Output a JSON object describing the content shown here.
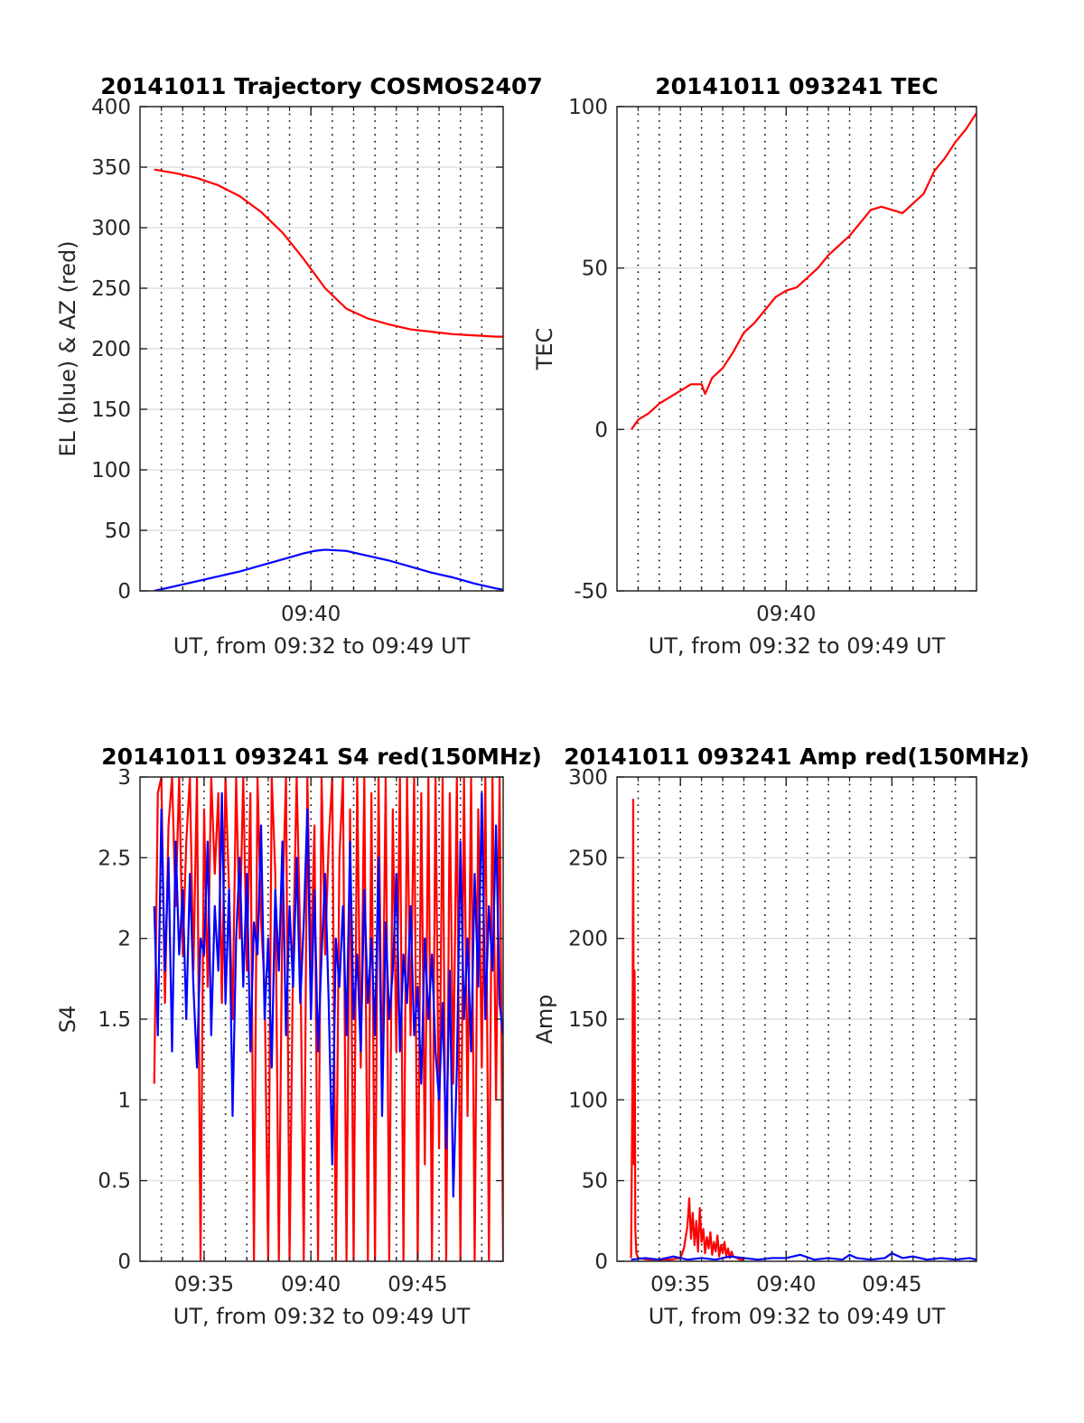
{
  "colors": {
    "red": "#ff0000",
    "blue": "#0000ff",
    "axis": "#262626",
    "grid": "#d9d9d9"
  },
  "chart_data": [
    {
      "id": "traj",
      "type": "line",
      "title": "20141011 Trajectory COSMOS2407",
      "xlabel": "UT, from 09:32 to 09:49 UT",
      "ylabel": "EL (blue) & AZ (red)",
      "xlim": [
        "09:32",
        "09:49"
      ],
      "ylim": [
        0,
        400
      ],
      "yticks": [
        0,
        50,
        100,
        150,
        200,
        250,
        300,
        350,
        400
      ],
      "xticks": [
        {
          "x": "09:40",
          "label": "09:40"
        }
      ],
      "grid": true,
      "series": [
        {
          "color": "#ff0000",
          "x": [
            "09:32:40",
            "09:33:40",
            "09:34:40",
            "09:35:40",
            "09:36:40",
            "09:37:40",
            "09:38:40",
            "09:39:40",
            "09:40:40",
            "09:41:40",
            "09:42:40",
            "09:43:40",
            "09:44:40",
            "09:45:40",
            "09:46:40",
            "09:47:40",
            "09:48:40",
            "09:49:00"
          ],
          "y": [
            348,
            345,
            341,
            335,
            326,
            313,
            296,
            274,
            250,
            233,
            225,
            220,
            216,
            214,
            212,
            211,
            210,
            210
          ]
        },
        {
          "color": "#0000ff",
          "x": [
            "09:32:40",
            "09:33:40",
            "09:34:40",
            "09:35:40",
            "09:36:40",
            "09:37:40",
            "09:38:40",
            "09:39:40",
            "09:40:10",
            "09:40:40",
            "09:41:40",
            "09:42:40",
            "09:43:40",
            "09:44:40",
            "09:45:40",
            "09:46:40",
            "09:47:40",
            "09:48:40",
            "09:49:00"
          ],
          "y": [
            0,
            4,
            8,
            12,
            16,
            21,
            26,
            31,
            33,
            34,
            33,
            29,
            25,
            20,
            15,
            11,
            6,
            2,
            1
          ]
        }
      ]
    },
    {
      "id": "tec",
      "type": "line",
      "title": "20141011 093241 TEC",
      "xlabel": "UT, from 09:32 to 09:49 UT",
      "ylabel": "TEC",
      "xlim": [
        "09:32",
        "09:49"
      ],
      "ylim": [
        -50,
        100
      ],
      "yticks": [
        -50,
        0,
        50,
        100
      ],
      "xticks": [
        {
          "x": "09:40",
          "label": "09:40"
        }
      ],
      "grid": true,
      "series": [
        {
          "color": "#ff0000",
          "x": [
            "09:32:41",
            "09:33:00",
            "09:33:30",
            "09:34:00",
            "09:34:30",
            "09:35:00",
            "09:35:30",
            "09:36:00",
            "09:36:10",
            "09:36:30",
            "09:37:00",
            "09:37:30",
            "09:38:00",
            "09:38:30",
            "09:39:00",
            "09:39:30",
            "09:40:00",
            "09:40:30",
            "09:41:00",
            "09:41:30",
            "09:42:00",
            "09:42:30",
            "09:43:00",
            "09:43:30",
            "09:44:00",
            "09:44:30",
            "09:45:00",
            "09:45:30",
            "09:46:00",
            "09:46:30",
            "09:47:00",
            "09:47:30",
            "09:48:00",
            "09:48:30",
            "09:49:00"
          ],
          "y": [
            0,
            3,
            5,
            8,
            10,
            12,
            14,
            14,
            11,
            16,
            19,
            24,
            30,
            33,
            37,
            41,
            43,
            44,
            47,
            50,
            54,
            57,
            60,
            64,
            68,
            69,
            68,
            67,
            70,
            73,
            80,
            84,
            89,
            93,
            98
          ]
        }
      ]
    },
    {
      "id": "s4",
      "type": "line",
      "title": "20141011 093241 S4 red(150MHz)",
      "xlabel": "UT, from 09:32 to 09:49 UT",
      "ylabel": "S4",
      "xlim": [
        "09:32",
        "09:49"
      ],
      "ylim": [
        0,
        3
      ],
      "yticks": [
        0,
        0.5,
        1,
        1.5,
        2,
        2.5,
        3
      ],
      "xticks": [
        {
          "x": "09:35",
          "label": "09:35"
        },
        {
          "x": "09:40",
          "label": "09:40"
        },
        {
          "x": "09:45",
          "label": "09:45"
        }
      ],
      "grid": true,
      "series": [
        {
          "color": "#ff0000",
          "x": [
            "09:32:40",
            "09:32:50",
            "09:33:00",
            "09:33:10",
            "09:33:20",
            "09:33:30",
            "09:33:40",
            "09:33:50",
            "09:34:00",
            "09:34:10",
            "09:34:20",
            "09:34:30",
            "09:34:40",
            "09:34:50",
            "09:35:00",
            "09:35:10",
            "09:35:20",
            "09:35:30",
            "09:35:40",
            "09:35:50",
            "09:36:00",
            "09:36:10",
            "09:36:20",
            "09:36:30",
            "09:36:40",
            "09:36:50",
            "09:37:00",
            "09:37:10",
            "09:37:20",
            "09:37:30",
            "09:37:40",
            "09:37:50",
            "09:38:00",
            "09:38:10",
            "09:38:20",
            "09:38:30",
            "09:38:40",
            "09:38:50",
            "09:39:00",
            "09:39:10",
            "09:39:20",
            "09:39:30",
            "09:39:40",
            "09:39:50",
            "09:40:00",
            "09:40:10",
            "09:40:20",
            "09:40:30",
            "09:40:40",
            "09:40:50",
            "09:41:00",
            "09:41:10",
            "09:41:20",
            "09:41:30",
            "09:41:40",
            "09:41:50",
            "09:42:00",
            "09:42:10",
            "09:42:20",
            "09:42:30",
            "09:42:40",
            "09:42:50",
            "09:43:00",
            "09:43:10",
            "09:43:20",
            "09:43:30",
            "09:43:40",
            "09:43:50",
            "09:44:00",
            "09:44:10",
            "09:44:20",
            "09:44:30",
            "09:44:40",
            "09:44:50",
            "09:45:00",
            "09:45:10",
            "09:45:20",
            "09:45:30",
            "09:45:40",
            "09:45:50",
            "09:46:00",
            "09:46:10",
            "09:46:20",
            "09:46:30",
            "09:46:40",
            "09:46:50",
            "09:47:00",
            "09:47:10",
            "09:47:20",
            "09:47:30",
            "09:47:40",
            "09:47:50",
            "09:48:00",
            "09:48:10",
            "09:48:20",
            "09:48:30",
            "09:48:40",
            "09:48:50",
            "09:49:00"
          ],
          "y": [
            1.1,
            2.9,
            3.0,
            1.6,
            2.7,
            3.0,
            2.2,
            3.0,
            1.9,
            2.6,
            3.0,
            1.8,
            3.0,
            0.0,
            2.8,
            1.7,
            3.0,
            2.4,
            2.9,
            1.6,
            3.0,
            2.3,
            1.5,
            3.0,
            2.0,
            3.0,
            1.8,
            2.9,
            0.0,
            3.0,
            2.1,
            1.7,
            0.0,
            3.0,
            2.4,
            0.0,
            2.2,
            3.0,
            0.0,
            1.9,
            3.0,
            2.0,
            0.0,
            3.0,
            1.8,
            2.7,
            0.0,
            3.0,
            1.9,
            2.6,
            3.0,
            0.0,
            2.5,
            3.0,
            0.0,
            2.8,
            0.0,
            3.0,
            1.2,
            3.0,
            0.0,
            2.9,
            0.0,
            3.0,
            1.0,
            3.0,
            0.0,
            2.8,
            1.3,
            3.0,
            0.0,
            3.0,
            1.4,
            3.0,
            0.0,
            2.9,
            0.6,
            3.0,
            0.0,
            3.0,
            0.7,
            3.0,
            0.0,
            2.9,
            1.1,
            3.0,
            0.0,
            3.0,
            0.9,
            3.0,
            0.0,
            2.8,
            1.2,
            3.0,
            0.0,
            3.0,
            1.0,
            3.0,
            0.0
          ]
        },
        {
          "color": "#0000ff",
          "x": [
            "09:32:40",
            "09:32:50",
            "09:33:00",
            "09:33:10",
            "09:33:20",
            "09:33:30",
            "09:33:40",
            "09:33:50",
            "09:34:00",
            "09:34:10",
            "09:34:20",
            "09:34:30",
            "09:34:40",
            "09:34:50",
            "09:35:00",
            "09:35:10",
            "09:35:20",
            "09:35:30",
            "09:35:40",
            "09:35:50",
            "09:36:00",
            "09:36:10",
            "09:36:20",
            "09:36:30",
            "09:36:40",
            "09:36:50",
            "09:37:00",
            "09:37:10",
            "09:37:20",
            "09:37:30",
            "09:37:40",
            "09:37:50",
            "09:38:00",
            "09:38:10",
            "09:38:20",
            "09:38:30",
            "09:38:40",
            "09:38:50",
            "09:39:00",
            "09:39:10",
            "09:39:20",
            "09:39:30",
            "09:39:40",
            "09:39:50",
            "09:40:00",
            "09:40:10",
            "09:40:20",
            "09:40:30",
            "09:40:40",
            "09:40:50",
            "09:41:00",
            "09:41:10",
            "09:41:20",
            "09:41:30",
            "09:41:40",
            "09:41:50",
            "09:42:00",
            "09:42:10",
            "09:42:20",
            "09:42:30",
            "09:42:40",
            "09:42:50",
            "09:43:00",
            "09:43:10",
            "09:43:20",
            "09:43:30",
            "09:43:40",
            "09:43:50",
            "09:44:00",
            "09:44:10",
            "09:44:20",
            "09:44:30",
            "09:44:40",
            "09:44:50",
            "09:45:00",
            "09:45:10",
            "09:45:20",
            "09:45:30",
            "09:45:40",
            "09:45:50",
            "09:46:00",
            "09:46:10",
            "09:46:20",
            "09:46:30",
            "09:46:40",
            "09:46:50",
            "09:47:00",
            "09:47:10",
            "09:47:20",
            "09:47:30",
            "09:47:40",
            "09:47:50",
            "09:48:00",
            "09:48:10",
            "09:48:20",
            "09:48:30",
            "09:48:40",
            "09:48:50",
            "09:49:00"
          ],
          "y": [
            2.2,
            1.4,
            2.8,
            1.8,
            2.5,
            1.3,
            2.6,
            1.9,
            2.3,
            1.5,
            2.4,
            1.7,
            1.2,
            2.0,
            1.9,
            2.6,
            1.4,
            2.2,
            1.8,
            2.9,
            1.6,
            2.3,
            0.9,
            2.0,
            2.5,
            1.7,
            2.4,
            1.3,
            2.1,
            1.9,
            2.7,
            1.5,
            2.0,
            1.2,
            2.3,
            1.8,
            2.6,
            1.4,
            2.2,
            1.7,
            2.5,
            1.6,
            2.1,
            2.8,
            1.5,
            2.3,
            1.3,
            1.9,
            2.4,
            1.6,
            0.6,
            2.0,
            1.7,
            2.2,
            1.4,
            2.6,
            1.5,
            1.9,
            1.3,
            2.3,
            1.6,
            2.0,
            1.4,
            2.5,
            0.9,
            2.1,
            1.5,
            1.8,
            2.4,
            1.3,
            1.9,
            1.6,
            2.2,
            1.4,
            1.7,
            1.1,
            2.0,
            1.5,
            1.9,
            1.3,
            1.0,
            1.6,
            0.7,
            1.8,
            0.4,
            1.2,
            2.6,
            1.5,
            2.0,
            1.3,
            2.4,
            1.7,
            2.9,
            1.5,
            2.2,
            1.8,
            2.7,
            1.6,
            1.4
          ]
        }
      ]
    },
    {
      "id": "amp",
      "type": "line",
      "title": "20141011 093241 Amp red(150MHz)",
      "xlabel": "UT, from 09:32 to 09:49 UT",
      "ylabel": "Amp",
      "xlim": [
        "09:32",
        "09:49"
      ],
      "ylim": [
        0,
        300
      ],
      "yticks": [
        0,
        50,
        100,
        150,
        200,
        250,
        300
      ],
      "xticks": [
        {
          "x": "09:35",
          "label": "09:35"
        },
        {
          "x": "09:40",
          "label": "09:40"
        },
        {
          "x": "09:45",
          "label": "09:45"
        }
      ],
      "grid": true,
      "series": [
        {
          "color": "#ff0000",
          "x": [
            "09:32:40",
            "09:32:44",
            "09:32:46",
            "09:32:48",
            "09:32:50",
            "09:32:52",
            "09:32:55",
            "09:33:00",
            "09:33:30",
            "09:34:00",
            "09:34:30",
            "09:35:00",
            "09:35:10",
            "09:35:20",
            "09:35:25",
            "09:35:30",
            "09:35:35",
            "09:35:40",
            "09:35:45",
            "09:35:50",
            "09:35:55",
            "09:36:00",
            "09:36:05",
            "09:36:10",
            "09:36:15",
            "09:36:20",
            "09:36:25",
            "09:36:30",
            "09:36:35",
            "09:36:40",
            "09:36:45",
            "09:36:50",
            "09:36:55",
            "09:37:00",
            "09:37:05",
            "09:37:10",
            "09:37:15",
            "09:37:20",
            "09:37:25",
            "09:37:30",
            "09:37:40",
            "09:37:50",
            "09:38:00"
          ],
          "y": [
            2,
            115,
            286,
            60,
            180,
            20,
            5,
            2,
            1,
            1,
            1,
            2,
            8,
            22,
            39,
            14,
            30,
            10,
            25,
            6,
            33,
            12,
            20,
            5,
            15,
            8,
            18,
            4,
            12,
            6,
            16,
            3,
            10,
            5,
            12,
            3,
            8,
            2,
            6,
            3,
            2,
            1,
            1
          ]
        },
        {
          "color": "#0000ff",
          "x": [
            "09:32:40",
            "09:33:20",
            "09:34:00",
            "09:34:40",
            "09:35:20",
            "09:36:00",
            "09:36:40",
            "09:37:20",
            "09:38:00",
            "09:38:40",
            "09:39:20",
            "09:40:00",
            "09:40:40",
            "09:41:20",
            "09:42:00",
            "09:42:40",
            "09:43:00",
            "09:43:20",
            "09:44:00",
            "09:44:40",
            "09:45:00",
            "09:45:10",
            "09:45:30",
            "09:46:00",
            "09:46:40",
            "09:47:20",
            "09:48:00",
            "09:48:40",
            "09:49:00"
          ],
          "y": [
            1,
            2,
            1,
            3,
            1,
            2,
            1,
            3,
            2,
            1,
            2,
            2,
            4,
            1,
            2,
            1,
            4,
            2,
            1,
            2,
            5,
            4,
            2,
            3,
            1,
            2,
            1,
            2,
            1
          ]
        }
      ]
    }
  ]
}
